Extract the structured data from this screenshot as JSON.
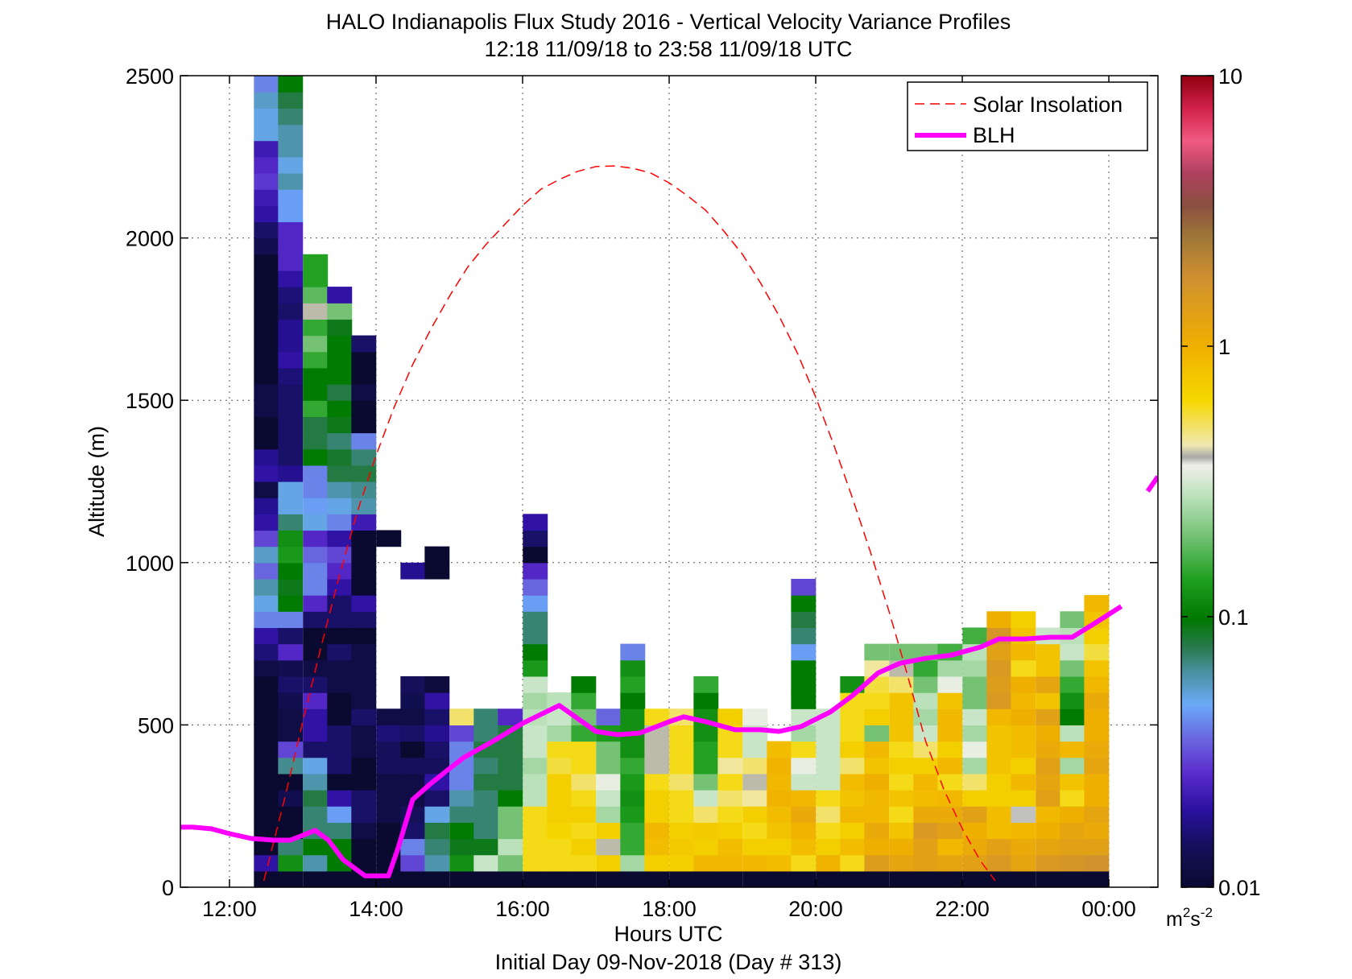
{
  "chart_data": {
    "type": "heatmap",
    "title": "HALO Indianapolis Flux Study 2016 - Vertical Velocity Variance Profiles",
    "subtitle": "12:18 11/09/18 to 23:58 11/09/18  UTC",
    "xlabel": "Hours UTC",
    "xlabel2": "Initial Day 09-Nov-2018 (Day # 313)",
    "ylabel": "Altitude (m)",
    "x_unit": "hours UTC",
    "xlim": [
      11.33,
      24.67
    ],
    "ylim": [
      0,
      2500
    ],
    "x_ticks": [
      12,
      14,
      16,
      18,
      20,
      22,
      24
    ],
    "x_tick_labels": [
      "12:00",
      "14:00",
      "16:00",
      "18:00",
      "20:00",
      "22:00",
      "00:00"
    ],
    "y_ticks": [
      0,
      500,
      1000,
      1500,
      2000,
      2500
    ],
    "y_tick_labels": [
      "0",
      "500",
      "1000",
      "1500",
      "2000",
      "2500"
    ],
    "grid": true,
    "legend_position": "top-right",
    "legend": [
      {
        "label": "Solar Insolation",
        "color": "#ff0000",
        "style": "dashed"
      },
      {
        "label": "BLH",
        "color": "#ff00ff",
        "style": "solid"
      }
    ],
    "colorbar": {
      "scale": "log",
      "min": 0.01,
      "max": 10,
      "ticks": [
        0.01,
        0.1,
        1,
        10
      ],
      "tick_labels": [
        "0.01",
        "0.1",
        "1",
        "10"
      ],
      "unit_label": "m",
      "unit_sup1": "2",
      "unit_mid": "s",
      "unit_sup2": "-2"
    },
    "cell_height_m": 50,
    "columns": [
      {
        "t": 12.5,
        "bottom": 0,
        "top": 2500,
        "values": [
          0.01,
          0.02,
          0.01,
          0.01,
          0.01,
          0.01,
          0.01,
          0.01,
          0.01,
          0.01,
          0.01,
          0.01,
          0.01,
          0.012,
          0.016,
          0.02,
          0.04,
          0.05,
          0.06,
          0.035,
          0.055,
          0.03,
          0.02,
          0.018,
          0.012,
          0.02,
          0.018,
          0.01,
          0.01,
          0.012,
          0.012,
          0.01,
          0.01,
          0.01,
          0.01,
          0.01,
          0.01,
          0.01,
          0.01,
          0.013,
          0.015,
          0.02,
          0.022,
          0.028,
          0.025,
          0.022,
          0.05,
          0.05,
          0.055,
          0.04
        ]
      },
      {
        "t": 12.83,
        "bottom": 0,
        "top": 2500,
        "values": [
          0.01,
          0.12,
          0.07,
          0.01,
          0.01,
          0.013,
          0.01,
          0.065,
          0.03,
          0.012,
          0.012,
          0.013,
          0.015,
          0.013,
          0.025,
          0.015,
          0.04,
          0.1,
          0.09,
          0.1,
          0.13,
          0.12,
          0.07,
          0.05,
          0.05,
          0.018,
          0.015,
          0.015,
          0.015,
          0.015,
          0.015,
          0.016,
          0.02,
          0.018,
          0.018,
          0.015,
          0.016,
          0.02,
          0.025,
          0.025,
          0.025,
          0.045,
          0.045,
          0.06,
          0.05,
          0.06,
          0.06,
          0.07,
          0.08,
          0.1
        ]
      },
      {
        "t": 13.17,
        "bottom": 0,
        "top": 1950,
        "values": [
          0.01,
          0.06,
          0.1,
          0.07,
          0.07,
          0.08,
          0.06,
          0.05,
          0.015,
          0.02,
          0.02,
          0.025,
          0.015,
          0.012,
          0.01,
          0.01,
          0.015,
          0.025,
          0.04,
          0.04,
          0.035,
          0.025,
          0.05,
          0.045,
          0.04,
          0.04,
          0.1,
          0.08,
          0.08,
          0.15,
          0.1,
          0.1,
          0.15,
          0.2,
          0.15,
          0.4,
          0.18,
          0.14,
          0.14
        ]
      },
      {
        "t": 13.5,
        "bottom": 0,
        "top": 1850,
        "values": [
          0.01,
          0.1,
          0.1,
          0.07,
          0.045,
          0.02,
          0.01,
          0.015,
          0.015,
          0.015,
          0.01,
          0.01,
          0.012,
          0.012,
          0.015,
          0.01,
          0.015,
          0.015,
          0.02,
          0.025,
          0.03,
          0.02,
          0.04,
          0.05,
          0.06,
          0.08,
          0.085,
          0.07,
          0.09,
          0.1,
          0.08,
          0.1,
          0.1,
          0.1,
          0.09,
          0.2,
          0.02
        ]
      },
      {
        "t": 13.83,
        "bottom": 0,
        "top": 1700,
        "values": [
          0.01,
          0.01,
          0.01,
          0.012,
          0.015,
          0.015,
          0.01,
          0.01,
          0.012,
          0.012,
          0.015,
          0.012,
          0.012,
          0.012,
          0.012,
          0.01,
          0.015,
          0.02,
          0.01,
          0.01,
          0.01,
          0.01,
          0.022,
          0.06,
          0.065,
          0.08,
          0.07,
          0.04,
          0.01,
          0.01,
          0.012,
          0.01,
          0.01,
          0.015
        ]
      },
      {
        "t": 14.17,
        "bottom": 0,
        "top": 1150,
        "values": [
          0.01,
          0.01,
          0.01,
          0.01,
          0.012,
          0.012,
          0.012,
          0.014,
          0.014,
          0.016,
          0.012,
          0.0,
          0.0,
          0.0,
          0.0,
          0.0,
          0.0,
          0.0,
          0.0,
          0.0,
          0.0,
          0.01
        ]
      },
      {
        "t": 14.5,
        "bottom": 0,
        "top": 1000,
        "values": [
          0.01,
          0.03,
          0.04,
          0.015,
          0.014,
          0.012,
          0.012,
          0.014,
          0.01,
          0.015,
          0.012,
          0.013,
          0.014,
          0.0,
          0.0,
          0.0,
          0.0,
          0.0,
          0.0,
          0.018
        ]
      },
      {
        "t": 14.83,
        "bottom": 0,
        "top": 1050,
        "values": [
          0.01,
          0.06,
          0.07,
          0.08,
          0.05,
          0.015,
          0.02,
          0.014,
          0.015,
          0.018,
          0.015,
          0.02,
          0.011,
          0.0,
          0.0,
          0.0,
          0.0,
          0.0,
          0.0,
          0.01,
          0.01
        ]
      },
      {
        "t": 15.17,
        "bottom": 0,
        "top": 550,
        "values": [
          0.01,
          0.12,
          0.09,
          0.1,
          0.07,
          0.06,
          0.04,
          0.04,
          0.04,
          0.03,
          0.5
        ]
      },
      {
        "t": 15.5,
        "bottom": 0,
        "top": 550,
        "values": [
          0.01,
          0.3,
          0.09,
          0.07,
          0.07,
          0.07,
          0.08,
          0.07,
          0.08,
          0.07,
          0.07
        ]
      },
      {
        "t": 15.83,
        "bottom": 0,
        "top": 550,
        "values": [
          0.01,
          0.2,
          0.28,
          0.2,
          0.2,
          0.1,
          0.08,
          0.08,
          0.08,
          0.08,
          0.025
        ]
      },
      {
        "t": 16.17,
        "bottom": 0,
        "top": 1150,
        "values": [
          0.01,
          0.6,
          0.6,
          0.6,
          0.6,
          0.28,
          0.28,
          0.25,
          0.3,
          0.3,
          0.28,
          0.25,
          0.3,
          0.13,
          0.1,
          0.07,
          0.07,
          0.045,
          0.035,
          0.025,
          0.01,
          0.015,
          0.02,
          0.015,
          0.012,
          0.01,
          0.015,
          0.015,
          0.01,
          0.15
        ]
      },
      {
        "t": 16.5,
        "bottom": 0,
        "top": 600,
        "values": [
          0.01,
          0.6,
          0.6,
          0.65,
          0.7,
          0.7,
          0.7,
          0.55,
          0.6,
          0.25,
          0.3,
          0.28
        ]
      },
      {
        "t": 16.83,
        "bottom": 0,
        "top": 650,
        "values": [
          0.01,
          0.6,
          0.7,
          0.6,
          0.7,
          0.6,
          0.5,
          0.6,
          0.6,
          0.15,
          0.2,
          0.15,
          0.1
        ]
      },
      {
        "t": 17.17,
        "bottom": 0,
        "top": 550,
        "values": [
          0.01,
          0.7,
          0.4,
          0.7,
          0.25,
          0.3,
          0.35,
          0.2,
          0.2,
          0.13,
          0.035
        ]
      },
      {
        "t": 17.5,
        "bottom": 0,
        "top": 750,
        "values": [
          0.01,
          0.25,
          0.15,
          0.15,
          0.13,
          0.12,
          0.13,
          0.15,
          0.12,
          0.12,
          0.12,
          0.1,
          0.14,
          0.12,
          0.04,
          0.01
        ]
      },
      {
        "t": 17.83,
        "bottom": 0,
        "top": 550,
        "values": [
          0.01,
          0.7,
          0.85,
          0.9,
          0.7,
          0.7,
          0.6,
          0.4,
          0.4,
          0.4,
          0.6
        ]
      },
      {
        "t": 18.17,
        "bottom": 0,
        "top": 550,
        "values": [
          0.01,
          0.7,
          0.75,
          0.7,
          0.6,
          0.6,
          0.5,
          0.6,
          0.6,
          0.6,
          0.5
        ]
      },
      {
        "t": 18.5,
        "bottom": 0,
        "top": 650,
        "values": [
          0.01,
          0.9,
          0.7,
          0.75,
          0.5,
          0.3,
          0.2,
          0.14,
          0.14,
          0.12,
          0.12,
          0.1,
          0.15
        ]
      },
      {
        "t": 18.83,
        "bottom": 0,
        "top": 550,
        "values": [
          0.01,
          0.9,
          0.85,
          0.7,
          0.6,
          0.5,
          0.6,
          0.45,
          0.6,
          0.6,
          0.7
        ]
      },
      {
        "t": 19.17,
        "bottom": 0,
        "top": 550,
        "values": [
          0.01,
          0.9,
          0.7,
          0.6,
          0.7,
          0.45,
          0.4,
          0.5,
          0.3,
          0.3,
          0.35
        ]
      },
      {
        "t": 19.5,
        "bottom": 0,
        "top": 450,
        "values": [
          0.01,
          0.85,
          0.7,
          0.8,
          0.85,
          0.95,
          0.9,
          0.95,
          0.85
        ]
      },
      {
        "t": 19.83,
        "bottom": 0,
        "top": 950,
        "values": [
          0.01,
          0.6,
          0.85,
          0.95,
          1.1,
          0.9,
          0.3,
          0.35,
          0.6,
          0.25,
          0.3,
          0.1,
          0.1,
          0.1,
          0.045,
          0.07,
          0.08,
          0.1,
          0.03,
          0.02,
          0.01
        ]
      },
      {
        "t": 20.17,
        "bottom": 0,
        "top": 550,
        "values": [
          0.01,
          0.95,
          0.7,
          0.6,
          0.5,
          0.6,
          0.3,
          0.3,
          0.3,
          0.3,
          0.3
        ]
      },
      {
        "t": 20.5,
        "bottom": 0,
        "top": 650,
        "values": [
          0.01,
          0.6,
          0.85,
          0.7,
          0.9,
          0.8,
          0.85,
          0.5,
          0.7,
          0.6,
          0.6,
          0.6,
          0.12
        ]
      },
      {
        "t": 20.83,
        "bottom": 0,
        "top": 750,
        "values": [
          0.01,
          1.4,
          1.0,
          1.1,
          0.9,
          0.9,
          1.0,
          0.8,
          0.9,
          0.2,
          0.7,
          0.6,
          0.55,
          0.45,
          0.2
        ]
      },
      {
        "t": 21.17,
        "bottom": 0,
        "top": 750,
        "values": [
          0.01,
          1.2,
          1.0,
          0.8,
          0.6,
          0.8,
          0.6,
          0.7,
          0.6,
          0.8,
          0.8,
          0.8,
          0.5,
          0.4,
          0.2
        ]
      },
      {
        "t": 21.5,
        "bottom": 0,
        "top": 750,
        "values": [
          0.01,
          1.3,
          1.3,
          1.5,
          1.1,
          0.85,
          0.9,
          0.7,
          0.5,
          0.3,
          0.25,
          0.28,
          0.2,
          0.15,
          0.2
        ]
      },
      {
        "t": 21.83,
        "bottom": 0,
        "top": 750,
        "values": [
          0.01,
          1.2,
          0.9,
          1.3,
          1.1,
          0.9,
          0.6,
          0.9,
          0.7,
          0.9,
          0.9,
          0.8,
          0.35,
          0.25,
          0.16
        ]
      },
      {
        "t": 22.17,
        "bottom": 0,
        "top": 800,
        "values": [
          0.01,
          1.3,
          1.1,
          1.0,
          1.3,
          0.7,
          0.5,
          0.25,
          0.35,
          0.25,
          0.3,
          0.2,
          0.2,
          0.25,
          0.28,
          0.16
        ]
      },
      {
        "t": 22.5,
        "bottom": 0,
        "top": 850,
        "values": [
          0.01,
          1.5,
          1.3,
          0.85,
          0.85,
          0.7,
          0.7,
          0.8,
          0.8,
          0.8,
          0.9,
          1.5,
          1.4,
          1.5,
          1.3,
          1.6,
          1.0
        ]
      },
      {
        "t": 22.83,
        "bottom": 0,
        "top": 850,
        "values": [
          0.01,
          1.2,
          1.1,
          0.9,
          0.38,
          0.7,
          0.9,
          0.7,
          0.85,
          0.85,
          1.0,
          0.9,
          1.0,
          0.6,
          0.9,
          0.8,
          0.7
        ]
      },
      {
        "t": 23.17,
        "bottom": 0,
        "top": 800,
        "values": [
          0.01,
          1.5,
          1.2,
          1.0,
          0.9,
          1.3,
          1.2,
          1.3,
          1.1,
          1.0,
          1.3,
          0.8,
          1.2,
          0.8,
          0.8,
          0.3
        ]
      },
      {
        "t": 23.5,
        "bottom": 0,
        "top": 850,
        "values": [
          0.01,
          1.6,
          1.3,
          1.2,
          1.0,
          0.6,
          0.8,
          0.25,
          0.9,
          0.28,
          0.1,
          0.12,
          0.15,
          0.2,
          0.3,
          0.28,
          0.2
        ]
      },
      {
        "t": 23.83,
        "bottom": 0,
        "top": 900,
        "values": [
          0.01,
          1.7,
          1.3,
          1.1,
          1.2,
          1.0,
          1.0,
          1.2,
          1.1,
          1.0,
          1.0,
          1.1,
          0.9,
          0.8,
          0.55,
          0.7,
          0.8,
          0.9
        ]
      }
    ],
    "series": [
      {
        "name": "BLH",
        "color": "#ff00ff",
        "x": [
          11.33,
          11.5,
          11.75,
          12.0,
          12.3,
          12.6,
          12.83,
          13.0,
          13.17,
          13.35,
          13.55,
          13.85,
          14.17,
          14.3,
          14.5,
          14.75,
          15.0,
          15.2,
          15.6,
          16.0,
          16.5,
          17.0,
          17.3,
          17.6,
          18.0,
          18.2,
          18.5,
          18.9,
          19.25,
          19.5,
          19.8,
          20.2,
          20.5,
          20.85,
          21.15,
          21.5,
          21.85,
          22.25,
          22.5,
          22.85,
          23.2,
          23.5,
          23.75,
          24.17
        ],
        "y": [
          185,
          185,
          180,
          165,
          150,
          145,
          145,
          160,
          175,
          145,
          85,
          35,
          35,
          120,
          270,
          320,
          365,
          400,
          450,
          505,
          560,
          480,
          470,
          475,
          510,
          525,
          510,
          485,
          485,
          480,
          495,
          540,
          590,
          660,
          690,
          705,
          715,
          740,
          765,
          765,
          770,
          770,
          805,
          865
        ],
        "x2": [
          24.53,
          24.67
        ],
        "y2": [
          1220,
          1265
        ]
      },
      {
        "name": "Solar Insolation",
        "color": "#ff0000",
        "x": [
          12.47,
          12.75,
          13.0,
          13.25,
          13.5,
          13.75,
          14.0,
          14.25,
          14.5,
          14.75,
          15.0,
          15.25,
          15.5,
          15.75,
          16.0,
          16.25,
          16.5,
          16.75,
          17.0,
          17.25,
          17.5,
          17.75,
          18.0,
          18.25,
          18.5,
          18.75,
          19.0,
          19.25,
          19.5,
          19.75,
          20.0,
          20.25,
          20.5,
          20.75,
          21.0,
          21.25,
          21.5,
          21.75,
          22.0,
          22.25,
          22.45
        ],
        "y": [
          20,
          270,
          510,
          740,
          960,
          1160,
          1330,
          1480,
          1610,
          1720,
          1820,
          1910,
          1980,
          2040,
          2100,
          2150,
          2180,
          2205,
          2220,
          2222,
          2215,
          2200,
          2170,
          2130,
          2085,
          2020,
          1950,
          1860,
          1760,
          1645,
          1510,
          1360,
          1200,
          1030,
          850,
          655,
          450,
          300,
          180,
          80,
          20
        ]
      }
    ]
  }
}
